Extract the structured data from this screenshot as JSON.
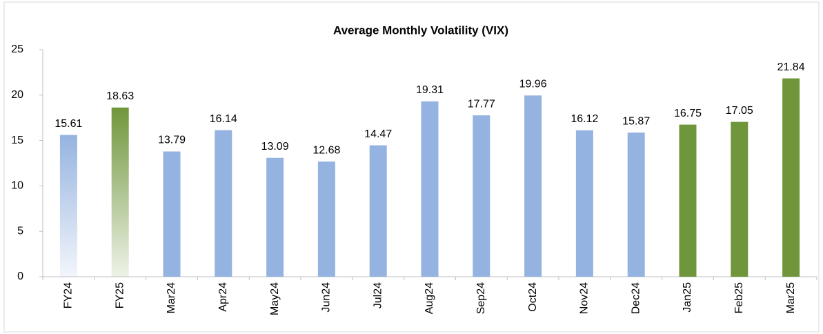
{
  "chart_data": {
    "type": "bar",
    "title": "Average Monthly Volatility (VIX)",
    "categories": [
      "FY24",
      "FY25",
      "Mar24",
      "Apr24",
      "May24",
      "Jun24",
      "Jul24",
      "Aug24",
      "Sep24",
      "Oct24",
      "Nov24",
      "Dec24",
      "Jan25",
      "Feb25",
      "Mar25"
    ],
    "values": [
      15.61,
      18.63,
      13.79,
      16.14,
      13.09,
      12.68,
      14.47,
      19.31,
      17.77,
      19.96,
      16.12,
      15.87,
      16.75,
      17.05,
      21.84
    ],
    "colors": [
      "#95b3e0",
      "#70963c",
      "#95b3e0",
      "#95b3e0",
      "#95b3e0",
      "#95b3e0",
      "#95b3e0",
      "#95b3e0",
      "#95b3e0",
      "#95b3e0",
      "#95b3e0",
      "#95b3e0",
      "#70963c",
      "#70963c",
      "#70963c"
    ],
    "gradient": [
      true,
      true,
      false,
      false,
      false,
      false,
      false,
      false,
      false,
      false,
      false,
      false,
      false,
      false,
      false
    ],
    "ylim": [
      0,
      25
    ],
    "yticks": [
      0,
      5,
      10,
      15,
      20,
      25
    ],
    "grid": false
  }
}
